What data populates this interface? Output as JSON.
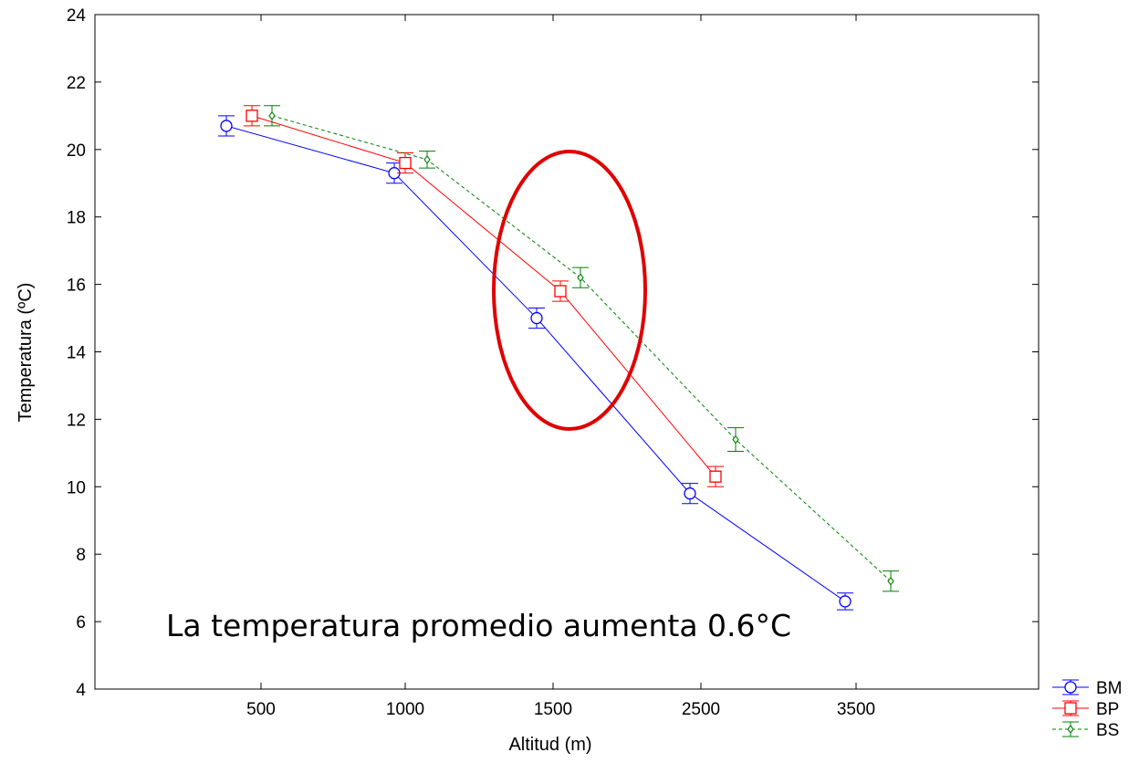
{
  "chart_data": {
    "type": "line",
    "title": "",
    "xlabel": "Altitud (m)",
    "ylabel": "Temperatura (ºC)",
    "categories": [
      "500",
      "1000",
      "1500",
      "2500",
      "3500"
    ],
    "ylim": [
      4,
      24
    ],
    "yticks": [
      "4",
      "6",
      "8",
      "10",
      "12",
      "14",
      "16",
      "18",
      "20",
      "22",
      "24"
    ],
    "grid": false,
    "legend_position": "bottom-right, outside plot",
    "series": [
      {
        "name": "BM",
        "color": "#0000ff",
        "marker": "circle",
        "line_style": "solid",
        "values": [
          20.7,
          19.3,
          15.0,
          9.8,
          6.6
        ],
        "error": [
          0.3,
          0.3,
          0.3,
          0.3,
          0.25
        ]
      },
      {
        "name": "BP",
        "color": "#ff0000",
        "marker": "square",
        "line_style": "solid",
        "values": [
          21.0,
          19.6,
          15.8,
          10.3,
          null
        ],
        "error": [
          0.3,
          0.3,
          0.3,
          0.3,
          null
        ]
      },
      {
        "name": "BS",
        "color": "#008000",
        "marker": "diamond",
        "line_style": "dashed",
        "values": [
          21.0,
          19.7,
          16.2,
          11.4,
          7.2
        ],
        "error": [
          0.3,
          0.25,
          0.3,
          0.35,
          0.3
        ]
      }
    ],
    "annotations": [
      {
        "text": "La temperatura promedio aumenta 0.6°C"
      }
    ],
    "highlight_color": "#e00000"
  }
}
